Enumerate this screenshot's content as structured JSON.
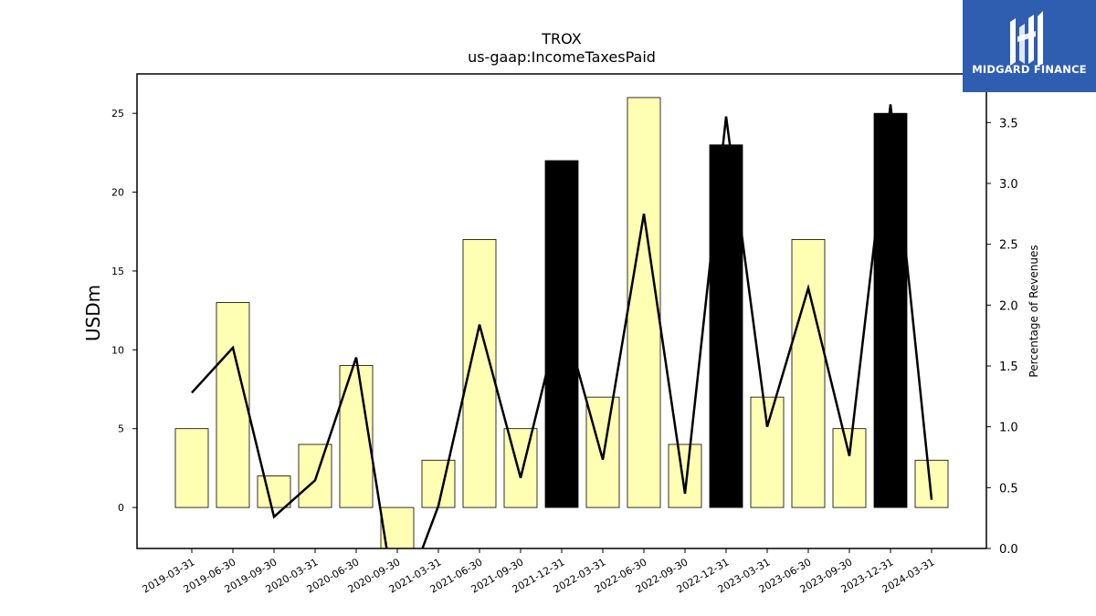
{
  "chart_data": {
    "type": "bar",
    "title": "TROX",
    "subtitle": "us-gaap:IncomeTaxesPaid",
    "ylabel": "USDm",
    "y2label": "Percentage of Revenues",
    "categories": [
      "2019-03-31",
      "2019-06-30",
      "2019-09-30",
      "2020-03-31",
      "2020-06-30",
      "2020-09-30",
      "2021-03-31",
      "2021-06-30",
      "2021-09-30",
      "2021-12-31",
      "2022-03-31",
      "2022-06-30",
      "2022-09-30",
      "2022-12-31",
      "2023-03-31",
      "2023-06-30",
      "2023-09-30",
      "2023-12-31",
      "2024-03-31"
    ],
    "series": [
      {
        "type": "bar",
        "axis": "left",
        "values": [
          5,
          13,
          2,
          4,
          9,
          -5,
          3,
          17,
          5,
          22,
          7,
          26,
          4,
          23,
          7,
          17,
          5,
          25,
          3
        ],
        "highlight": [
          false,
          false,
          false,
          false,
          false,
          false,
          false,
          false,
          false,
          true,
          false,
          false,
          false,
          true,
          false,
          false,
          false,
          true,
          false
        ],
        "color": "#ffffb3",
        "highlight_color": "#000000"
      },
      {
        "type": "line",
        "axis": "right",
        "values": [
          1.28,
          1.65,
          0.26,
          0.56,
          1.57,
          -0.55,
          0.35,
          1.84,
          0.58,
          1.95,
          0.73,
          2.75,
          0.45,
          3.55,
          1.0,
          2.14,
          0.76,
          3.65,
          0.4
        ],
        "color": "#000000"
      }
    ],
    "ylim": [
      -2.6,
      27.5
    ],
    "yticks": [
      0,
      5,
      10,
      15,
      20,
      25
    ],
    "y2lim": [
      0,
      3.9
    ],
    "y2ticks": [
      "0.0",
      "0.5",
      "1.0",
      "1.5",
      "2.0",
      "2.5",
      "3.0",
      "3.5"
    ],
    "grid": false,
    "legend": "none"
  },
  "logo": {
    "text": "MIDGARD FINANCE",
    "icon": "midgard-logo-icon",
    "color": "#2f5db0"
  }
}
